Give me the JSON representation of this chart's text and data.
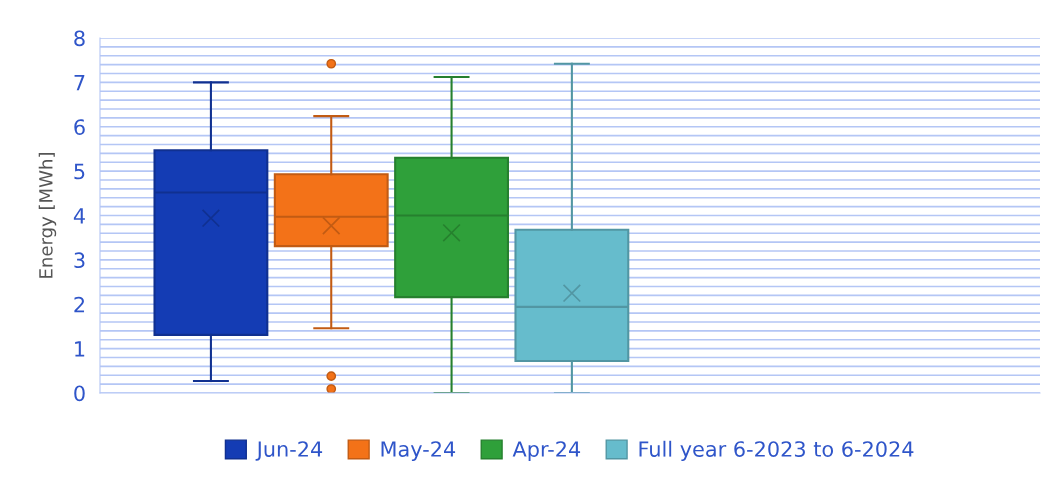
{
  "chart_data": {
    "type": "box",
    "ylabel": "Energy [MWh]",
    "categories": [
      null
    ],
    "ylim": [
      0,
      8
    ],
    "yticks": [
      0,
      {
        "value": 0.2,
        "label": null
      },
      {
        "value": 0.4,
        "label": null
      },
      {
        "value": 0.6,
        "label": null
      },
      {
        "value": 0.8,
        "label": null
      },
      1,
      {
        "value": 1.2,
        "label": null
      },
      {
        "value": 1.4,
        "label": null
      },
      {
        "value": 1.6,
        "label": null
      },
      {
        "value": 1.8,
        "label": null
      },
      2,
      {
        "value": 2.2,
        "label": null
      },
      {
        "value": 2.4,
        "label": null
      },
      {
        "value": 2.6,
        "label": null
      },
      {
        "value": 2.8,
        "label": null
      },
      3,
      {
        "value": 3.2,
        "label": null
      },
      {
        "value": 3.4,
        "label": null
      },
      {
        "value": 3.6,
        "label": null
      },
      {
        "value": 3.8,
        "label": null
      },
      4,
      {
        "value": 4.2,
        "label": null
      },
      {
        "value": 4.4,
        "label": null
      },
      {
        "value": 4.6,
        "label": null
      },
      {
        "value": 4.8,
        "label": null
      },
      5,
      {
        "value": 5.2,
        "label": null
      },
      {
        "value": 5.4,
        "label": null
      },
      {
        "value": 5.6,
        "label": null
      },
      {
        "value": 5.8,
        "label": null
      },
      6,
      {
        "value": 6.2,
        "label": null
      },
      {
        "value": 6.4,
        "label": null
      },
      {
        "value": 6.6,
        "label": null
      },
      {
        "value": 6.8,
        "label": null
      },
      7,
      {
        "value": 7.2,
        "label": null
      },
      {
        "value": 7.4,
        "label": null
      },
      {
        "value": 7.6,
        "label": null
      },
      {
        "value": 7.8,
        "label": null
      },
      8
    ],
    "grid": "y",
    "legend": "bottom",
    "series": [
      {
        "name": "Jun-24",
        "color": "#143cb4",
        "boxes": [
          {
            "low": 0.27,
            "q1": 1.31,
            "median": 4.52,
            "q3": 5.47,
            "high": 7.0,
            "mean": 3.94
          }
        ]
      },
      {
        "name": "May-24",
        "color": "#f37218",
        "boxes": [
          {
            "low": 1.46,
            "q1": 3.31,
            "median": 3.97,
            "q3": 4.93,
            "high": 6.24,
            "mean": 3.77,
            "outliers": [
              7.42,
              0.38,
              0.09
            ]
          }
        ]
      },
      {
        "name": "Apr-24",
        "color": "#2fa03a",
        "boxes": [
          {
            "low": 0.0,
            "q1": 2.16,
            "median": 4.0,
            "q3": 5.3,
            "high": 7.12,
            "mean": 3.61
          }
        ]
      },
      {
        "name": "Full year 6-2023 to 6-2024",
        "color": "#66bccc",
        "boxes": [
          {
            "low": 0.0,
            "q1": 0.72,
            "median": 1.94,
            "q3": 3.68,
            "high": 7.42,
            "mean": 2.25
          }
        ]
      }
    ]
  }
}
